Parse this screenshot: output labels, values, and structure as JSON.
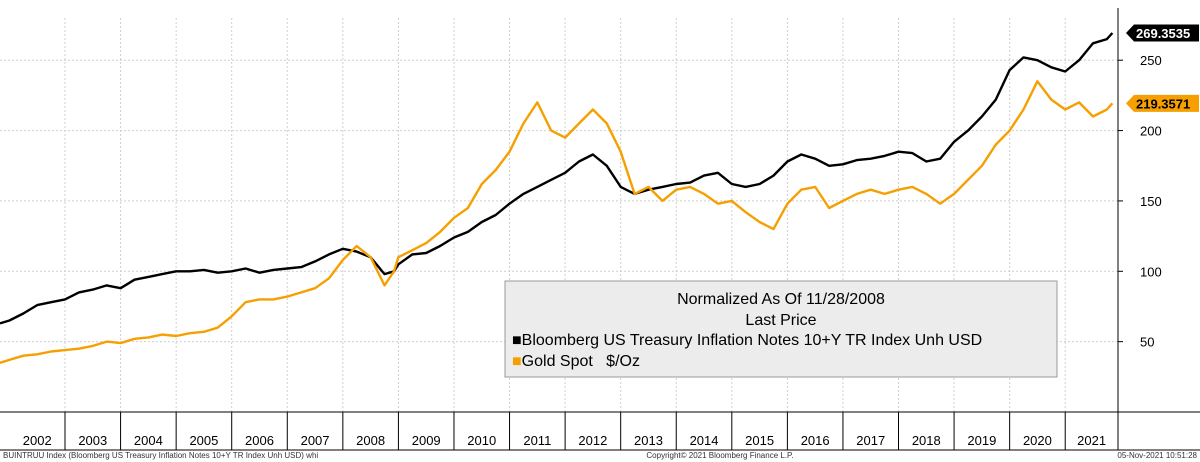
{
  "chart_data": {
    "type": "line",
    "title": "Normalized As Of 11/28/2008",
    "subtitle": "Last Price",
    "y_axis_side": "right",
    "ylim": [
      0,
      280
    ],
    "yticks": [
      50,
      100,
      150,
      200,
      250
    ],
    "xlim": [
      2001.83,
      2021.95
    ],
    "x_year_labels": [
      "2002",
      "2003",
      "2004",
      "2005",
      "2006",
      "2007",
      "2008",
      "2009",
      "2010",
      "2011",
      "2012",
      "2013",
      "2014",
      "2015",
      "2016",
      "2017",
      "2018",
      "2019",
      "2020",
      "2021"
    ],
    "grid": true,
    "legend_position": "bottom-center",
    "series": [
      {
        "name": "Bloomberg US Treasury Inflation Notes 10+Y TR Index Unh USD",
        "marker": "■",
        "color": "#000000",
        "last_value": "269.3535",
        "x": [
          2001.83,
          2002.0,
          2002.25,
          2002.5,
          2002.75,
          2003.0,
          2003.25,
          2003.5,
          2003.75,
          2004.0,
          2004.25,
          2004.5,
          2004.75,
          2005.0,
          2005.25,
          2005.5,
          2005.75,
          2006.0,
          2006.25,
          2006.5,
          2006.75,
          2007.0,
          2007.25,
          2007.5,
          2007.75,
          2008.0,
          2008.25,
          2008.5,
          2008.75,
          2008.92,
          2009.0,
          2009.25,
          2009.5,
          2009.75,
          2010.0,
          2010.25,
          2010.5,
          2010.75,
          2011.0,
          2011.25,
          2011.5,
          2011.75,
          2012.0,
          2012.25,
          2012.5,
          2012.75,
          2013.0,
          2013.25,
          2013.5,
          2013.75,
          2014.0,
          2014.25,
          2014.5,
          2014.75,
          2015.0,
          2015.25,
          2015.5,
          2015.75,
          2016.0,
          2016.25,
          2016.5,
          2016.75,
          2017.0,
          2017.25,
          2017.5,
          2017.75,
          2018.0,
          2018.25,
          2018.5,
          2018.75,
          2019.0,
          2019.25,
          2019.5,
          2019.75,
          2020.0,
          2020.25,
          2020.5,
          2020.75,
          2021.0,
          2021.25,
          2021.5,
          2021.75,
          2021.85
        ],
        "values": [
          63,
          65,
          70,
          76,
          78,
          80,
          85,
          87,
          90,
          88,
          94,
          96,
          98,
          100,
          100,
          101,
          99,
          100,
          102,
          99,
          101,
          102,
          103,
          107,
          112,
          116,
          114,
          110,
          98,
          100,
          105,
          112,
          113,
          118,
          124,
          128,
          135,
          140,
          148,
          155,
          160,
          165,
          170,
          178,
          183,
          175,
          160,
          155,
          158,
          160,
          162,
          163,
          168,
          170,
          162,
          160,
          162,
          168,
          178,
          183,
          180,
          175,
          176,
          179,
          180,
          182,
          185,
          184,
          178,
          180,
          192,
          200,
          210,
          222,
          243,
          252,
          250,
          245,
          242,
          250,
          262,
          265,
          269.35
        ]
      },
      {
        "name": "Gold Spot   $/Oz",
        "marker": "■",
        "color": "#f5a000",
        "last_value": "219.3571",
        "x": [
          2001.83,
          2002.0,
          2002.25,
          2002.5,
          2002.75,
          2003.0,
          2003.25,
          2003.5,
          2003.75,
          2004.0,
          2004.25,
          2004.5,
          2004.75,
          2005.0,
          2005.25,
          2005.5,
          2005.75,
          2006.0,
          2006.25,
          2006.5,
          2006.75,
          2007.0,
          2007.25,
          2007.5,
          2007.75,
          2008.0,
          2008.25,
          2008.5,
          2008.75,
          2008.92,
          2009.0,
          2009.25,
          2009.5,
          2009.75,
          2010.0,
          2010.25,
          2010.5,
          2010.75,
          2011.0,
          2011.25,
          2011.5,
          2011.75,
          2012.0,
          2012.25,
          2012.5,
          2012.75,
          2013.0,
          2013.25,
          2013.5,
          2013.75,
          2014.0,
          2014.25,
          2014.5,
          2014.75,
          2015.0,
          2015.25,
          2015.5,
          2015.75,
          2016.0,
          2016.25,
          2016.5,
          2016.75,
          2017.0,
          2017.25,
          2017.5,
          2017.75,
          2018.0,
          2018.25,
          2018.5,
          2018.75,
          2019.0,
          2019.25,
          2019.5,
          2019.75,
          2020.0,
          2020.25,
          2020.5,
          2020.75,
          2021.0,
          2021.25,
          2021.5,
          2021.75,
          2021.85
        ],
        "values": [
          35,
          37,
          40,
          41,
          43,
          44,
          45,
          47,
          50,
          49,
          52,
          53,
          55,
          54,
          56,
          57,
          60,
          68,
          78,
          80,
          80,
          82,
          85,
          88,
          95,
          108,
          118,
          110,
          90,
          100,
          110,
          115,
          120,
          128,
          138,
          145,
          162,
          172,
          185,
          205,
          220,
          200,
          195,
          205,
          215,
          205,
          185,
          155,
          160,
          150,
          158,
          160,
          155,
          148,
          150,
          142,
          135,
          130,
          148,
          158,
          160,
          145,
          150,
          155,
          158,
          155,
          158,
          160,
          155,
          148,
          155,
          165,
          175,
          190,
          200,
          215,
          235,
          222,
          215,
          220,
          210,
          215,
          219.36
        ]
      }
    ]
  },
  "footer": {
    "left": "BUINTRUU Index (Bloomberg US Treasury Inflation Notes 10+Y TR Index Unh USD) whi",
    "center": "Copyright© 2021 Bloomberg Finance L.P.",
    "right": "05-Nov-2021 10:51:28"
  },
  "colors": {
    "grid": "#cfcfcf",
    "legend_bg": "#ececec",
    "legend_border": "#9a9a9a",
    "axis": "#000000"
  }
}
